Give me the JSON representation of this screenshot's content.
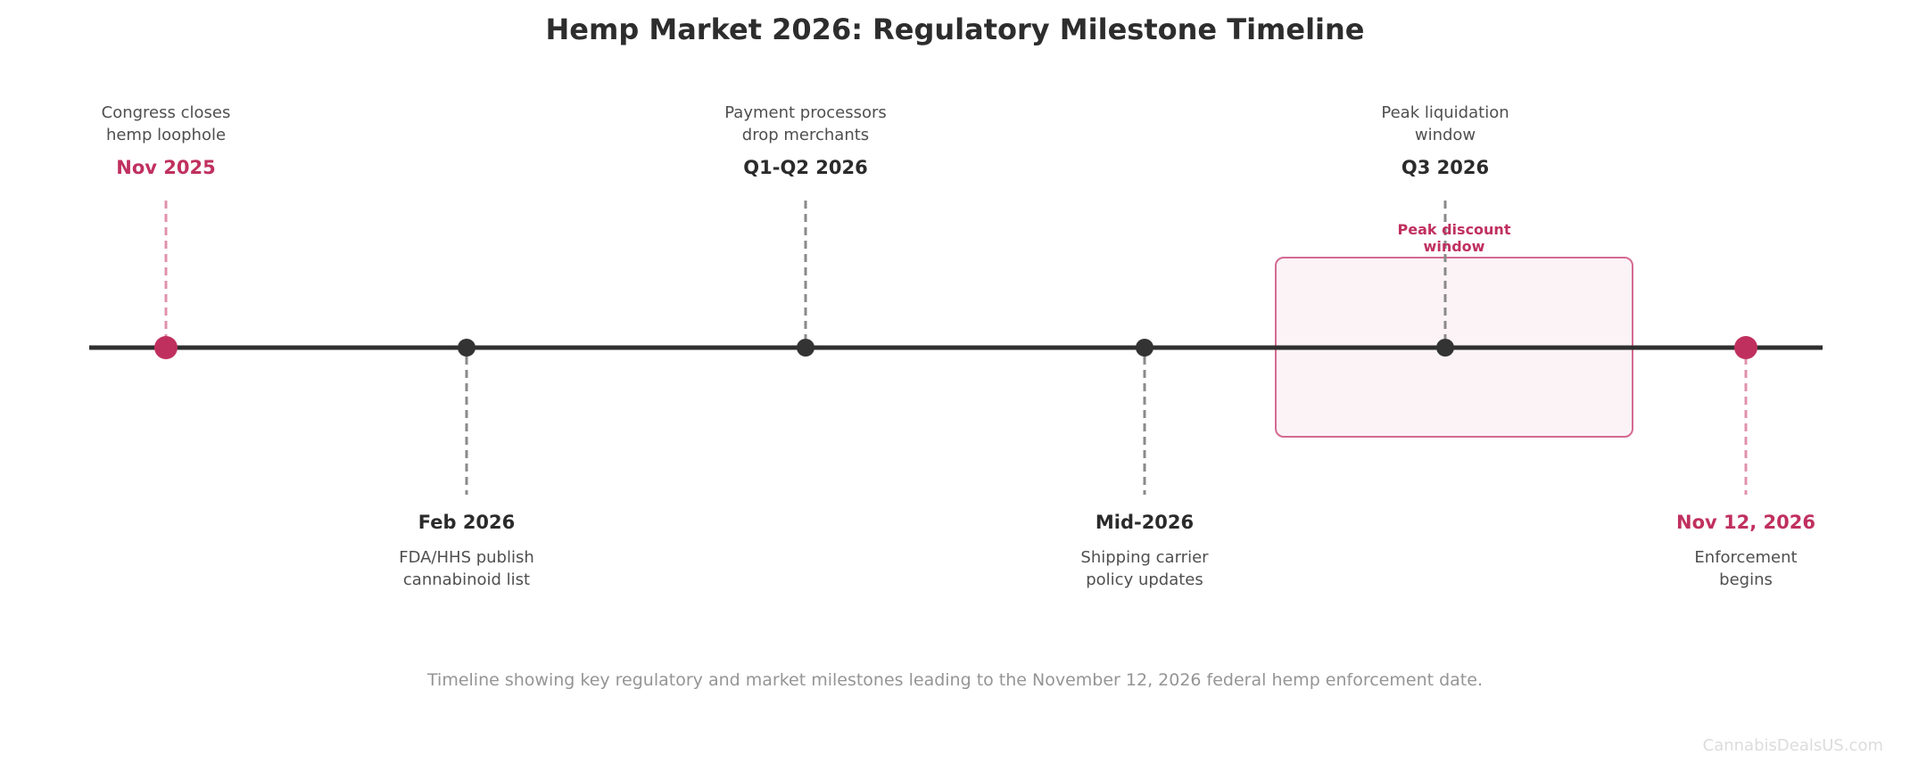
{
  "title": "Hemp Market 2026: Regulatory Milestone Timeline",
  "caption": "Timeline showing key regulatory and market milestones leading to the November 12, 2026 federal hemp enforcement date.",
  "watermark": "CannabisDealsUS.com",
  "colors": {
    "accent": "#c0305f",
    "line": "#2f2f2f",
    "connector": "#8a8a8a",
    "highlight_fill": "#fcf3f6"
  },
  "milestones": [
    {
      "date": "Nov 2025",
      "description_lines": [
        "Congress closes",
        "hemp loophole"
      ],
      "side": "above",
      "accent": true
    },
    {
      "date": "Feb 2026",
      "description_lines": [
        "FDA/HHS publish",
        "cannabinoid list"
      ],
      "side": "below",
      "accent": false
    },
    {
      "date": "Q1-Q2 2026",
      "description_lines": [
        "Payment processors",
        "drop merchants"
      ],
      "side": "above",
      "accent": false
    },
    {
      "date": "Mid-2026",
      "description_lines": [
        "Shipping carrier",
        "policy updates"
      ],
      "side": "below",
      "accent": false
    },
    {
      "date": "Q3 2026",
      "description_lines": [
        "Peak liquidation",
        "window"
      ],
      "side": "above",
      "accent": false
    },
    {
      "date": "Nov 12, 2026",
      "description_lines": [
        "Enforcement",
        "begins"
      ],
      "side": "below",
      "accent": true
    }
  ],
  "highlight": {
    "label_lines": [
      "Peak discount",
      "window"
    ],
    "milestone": "Q3 2026"
  }
}
